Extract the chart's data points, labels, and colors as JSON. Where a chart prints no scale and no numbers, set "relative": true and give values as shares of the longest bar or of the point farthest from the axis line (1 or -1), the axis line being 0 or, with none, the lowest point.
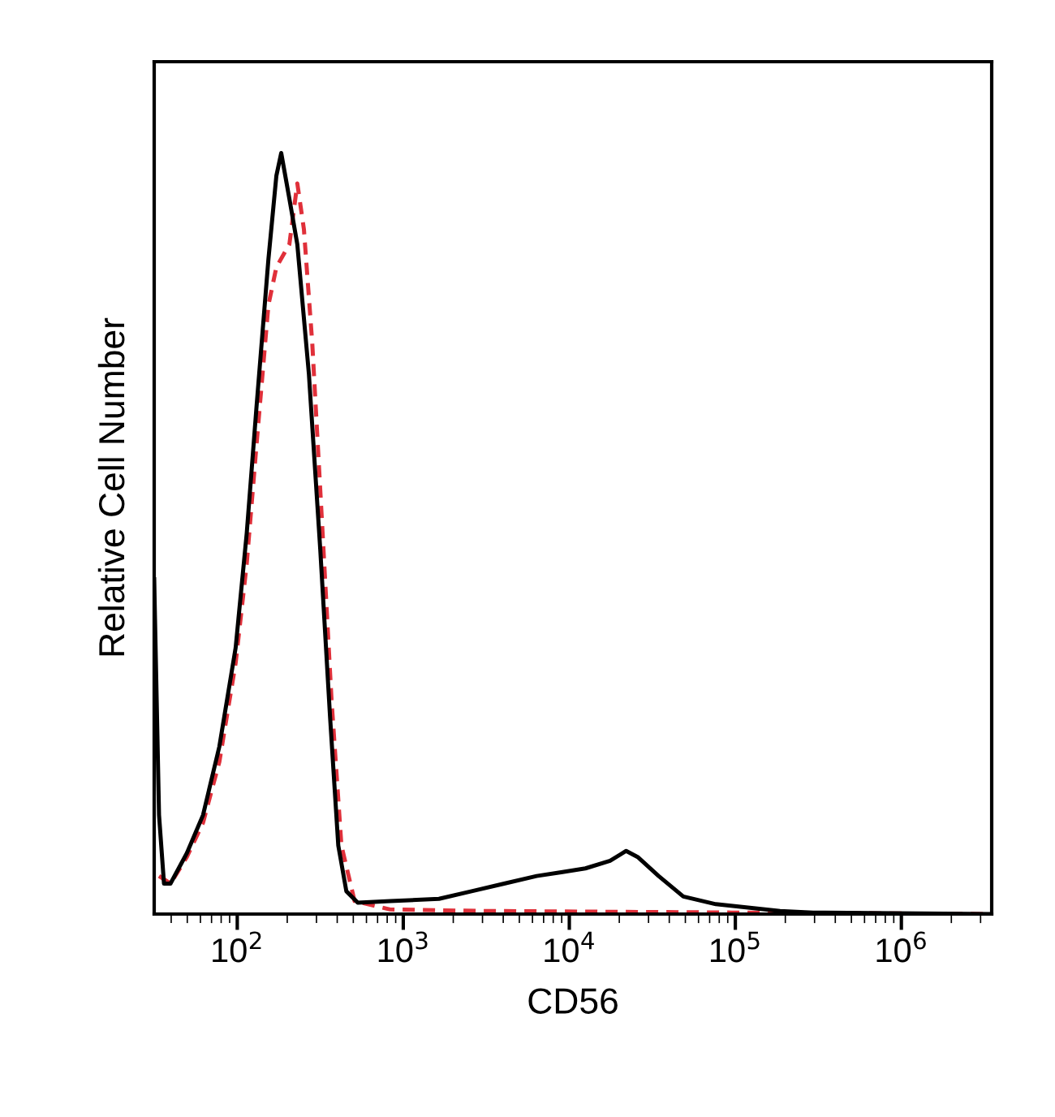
{
  "chart_data": {
    "type": "line",
    "relative": true,
    "log": "x",
    "xlabel": "CD56",
    "ylabel": "Relative Cell Number",
    "xlim": [
      31.6,
      3500000
    ],
    "xticks": [
      {
        "value": 100,
        "label": "10$^{2}$"
      },
      {
        "value": 1000,
        "label": "10$^{3}$"
      },
      {
        "value": 10000,
        "label": "10$^{4}$"
      },
      {
        "value": 100000,
        "label": "10$^{5}$"
      },
      {
        "value": 1000000,
        "label": "10$^{6}$"
      }
    ],
    "grid": false,
    "legend": false,
    "marker": "none",
    "series": [
      {
        "color": "#e0303a",
        "line_style": "dashed",
        "x": [
          33.8,
          39.6,
          49.7,
          62.2,
          78,
          97.8,
          114,
          131,
          154,
          172,
          206,
          230,
          252,
          283,
          323,
          370,
          424,
          509,
          835,
          3230,
          95000,
          3500000
        ],
        "values": [
          0.05,
          0.04,
          0.075,
          0.12,
          0.2,
          0.33,
          0.46,
          0.62,
          0.8,
          0.85,
          0.88,
          0.96,
          0.9,
          0.75,
          0.52,
          0.28,
          0.09,
          0.017,
          0.006,
          0.004,
          0.002,
          0
        ]
      },
      {
        "color": "#000000",
        "line_style": "solid",
        "x": [
          31.6,
          33.8,
          36.2,
          39.6,
          49.7,
          62.2,
          78,
          97.8,
          114,
          131,
          154,
          172,
          184,
          206,
          230,
          270,
          316,
          362,
          406,
          454,
          532,
          835,
          1640,
          2580,
          4050,
          6360,
          8940,
          12500,
          17600,
          22000,
          25800,
          34500,
          48600,
          76300,
          186000,
          294000,
          3500000
        ],
        "values": [
          0.44,
          0.13,
          0.04,
          0.04,
          0.08,
          0.13,
          0.22,
          0.35,
          0.5,
          0.67,
          0.86,
          0.97,
          1.0,
          0.94,
          0.88,
          0.71,
          0.48,
          0.26,
          0.09,
          0.03,
          0.015,
          0.017,
          0.02,
          0.03,
          0.04,
          0.05,
          0.055,
          0.06,
          0.07,
          0.083,
          0.075,
          0.05,
          0.023,
          0.013,
          0.004,
          0.002,
          0
        ]
      }
    ]
  }
}
